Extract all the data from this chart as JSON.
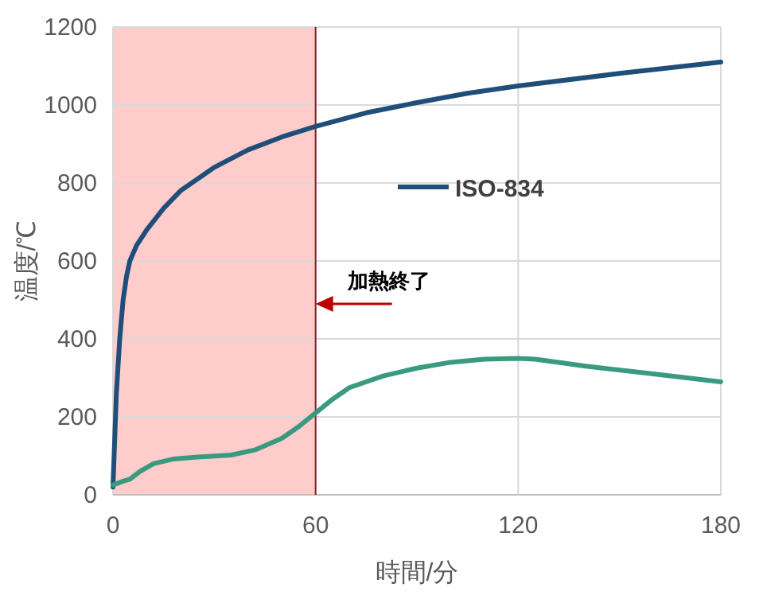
{
  "chart_data": {
    "type": "line",
    "xlabel": "時間/分",
    "ylabel": "温度/℃",
    "xlim": [
      0,
      180
    ],
    "xticks": [
      0,
      60,
      120,
      180
    ],
    "ylim": [
      0,
      1200
    ],
    "yticks": [
      0,
      200,
      400,
      600,
      800,
      1000,
      1200
    ],
    "grid": true,
    "legend": "right",
    "line_style": "solid",
    "series": [
      {
        "name": "ISO-834",
        "color": "#1f4e79",
        "x": [
          0,
          1,
          2,
          3,
          4,
          5,
          7,
          10,
          15,
          20,
          30,
          40,
          50,
          60,
          75,
          90,
          105,
          120,
          150,
          180
        ],
        "values": [
          20,
          260,
          400,
          500,
          560,
          600,
          640,
          680,
          735,
          780,
          840,
          885,
          918,
          945,
          980,
          1006,
          1030,
          1049,
          1081,
          1110
        ]
      },
      {
        "color": "#3a9a80",
        "x": [
          0,
          3,
          5,
          8,
          12,
          18,
          25,
          35,
          42,
          50,
          55,
          60,
          65,
          70,
          80,
          90,
          100,
          110,
          120,
          125,
          140,
          160,
          180
        ],
        "values": [
          25,
          35,
          40,
          60,
          80,
          92,
          97,
          102,
          115,
          145,
          175,
          210,
          245,
          275,
          305,
          325,
          340,
          348,
          350,
          348,
          330,
          310,
          290
        ]
      }
    ],
    "bands": [
      {
        "axis": "x",
        "from": 0,
        "to": 60,
        "color": "#ffcccc"
      }
    ],
    "ref_lines": [
      {
        "axis": "x",
        "value": 60,
        "color": "#8b1a1a"
      }
    ],
    "annotations": [
      {
        "text": "加熱終了",
        "x": 60,
        "y": 490
      }
    ]
  }
}
